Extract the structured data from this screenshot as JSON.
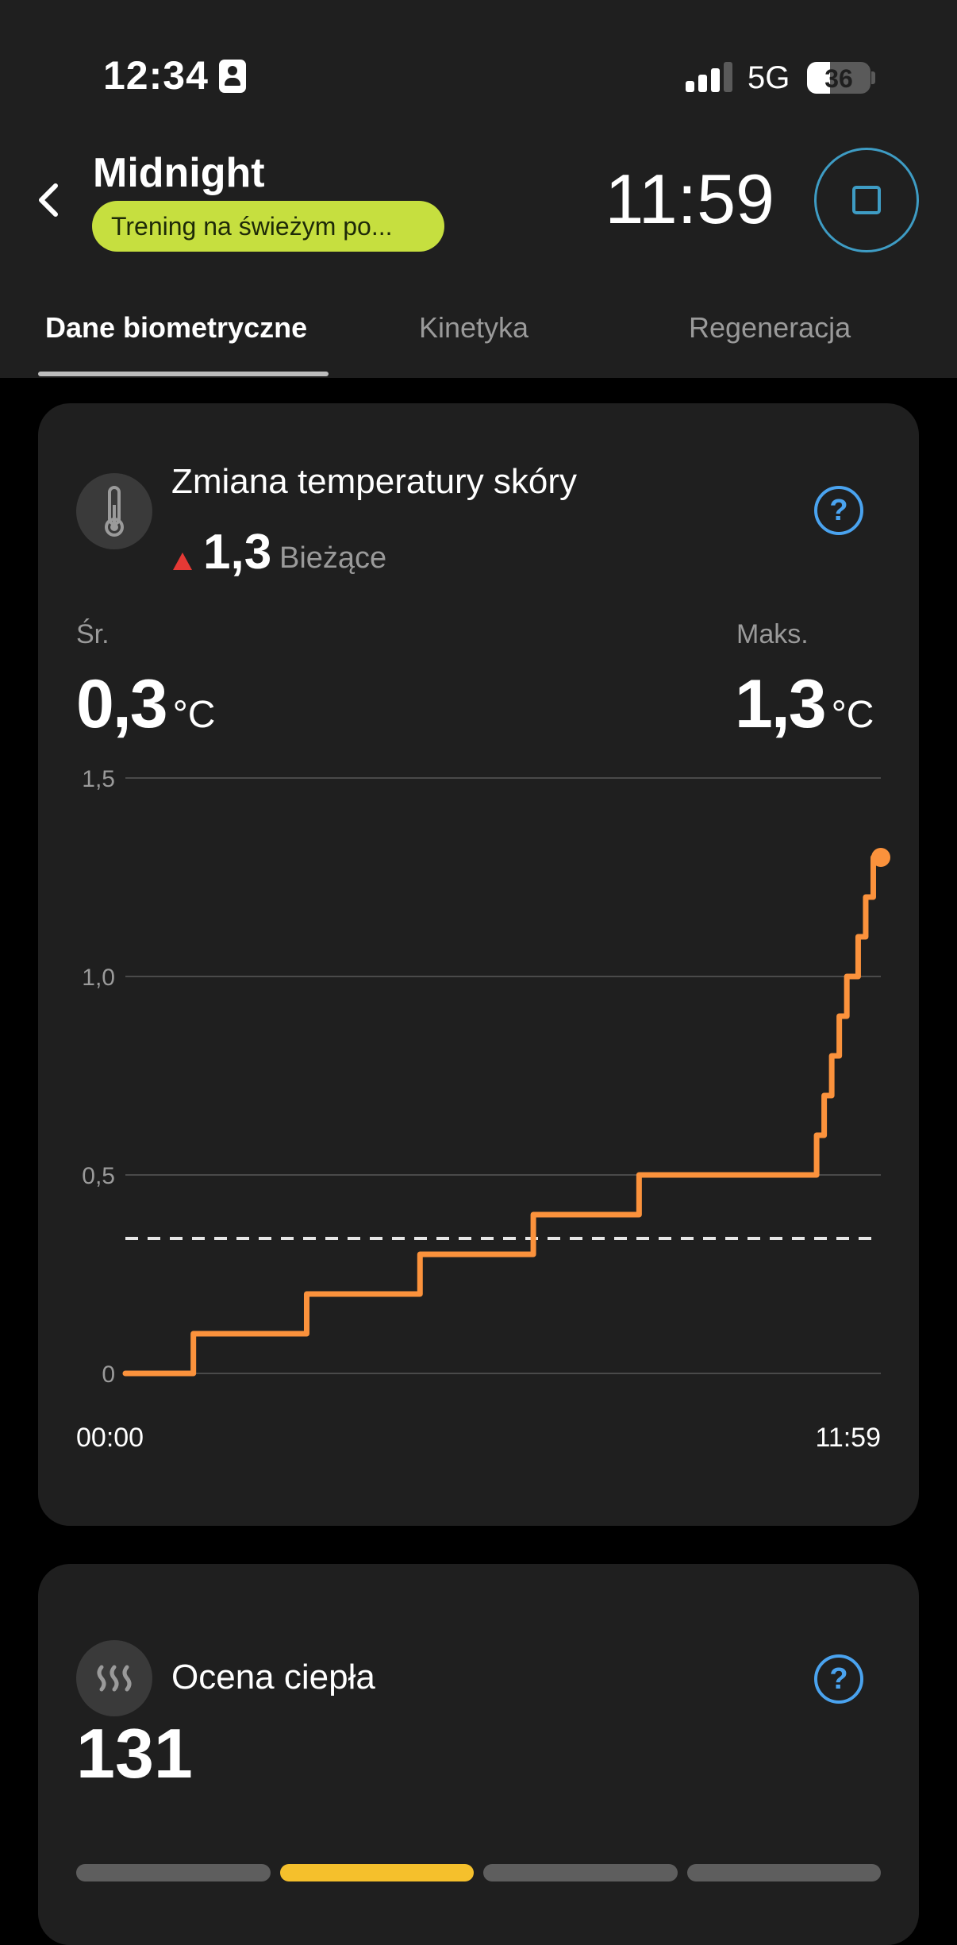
{
  "status_bar": {
    "time": "12:34",
    "network": "5G",
    "battery": "36",
    "battery_level": 0.36,
    "signal_bars": 3
  },
  "header": {
    "title": "Midnight",
    "workout_type": "Trening na świeżym po...",
    "elapsed_time": "11:59",
    "icons": {
      "back": "chevron-left-icon",
      "stop": "stop-icon"
    },
    "accent_color": "#c6df3f"
  },
  "tabs": [
    {
      "label": "Dane biometryczne",
      "active": true
    },
    {
      "label": "Kinetyka",
      "active": false
    },
    {
      "label": "Regeneracja",
      "active": false
    }
  ],
  "skin_temp_card": {
    "title": "Zmiana temperatury skóry",
    "icon": "thermometer-icon",
    "current_value": "1,3",
    "current_label": "Bieżące",
    "trend": "up",
    "avg_label": "Śr.",
    "avg_value": "0,3",
    "max_label": "Maks.",
    "max_value": "1,3",
    "unit": "°C",
    "help_label": "?"
  },
  "chart_data": {
    "type": "line",
    "step": true,
    "y_ticks": [
      "1,5",
      "1,0",
      "0,5",
      "0"
    ],
    "ylim": [
      0,
      1.5
    ],
    "x_labels": [
      "00:00",
      "11:59"
    ],
    "average_line": 0.34,
    "line_color": "#fb923c",
    "series": [
      {
        "x": [
          0,
          0.09,
          0.24,
          0.39,
          0.54,
          0.68,
          0.915,
          0.925,
          0.935,
          0.945,
          0.955,
          0.97,
          0.98,
          0.99,
          1.0
        ],
        "values": [
          0,
          0.1,
          0.2,
          0.3,
          0.4,
          0.5,
          0.6,
          0.7,
          0.8,
          0.9,
          1.0,
          1.1,
          1.2,
          1.3,
          1.3
        ]
      }
    ]
  },
  "heat_card": {
    "title": "Ocena ciepła",
    "icon": "heat-waves-icon",
    "value": "131",
    "help_label": "?",
    "segments": 4,
    "active_segment": 1,
    "active_color": "#f5c02c",
    "inactive_color": "#5e5e5e"
  }
}
